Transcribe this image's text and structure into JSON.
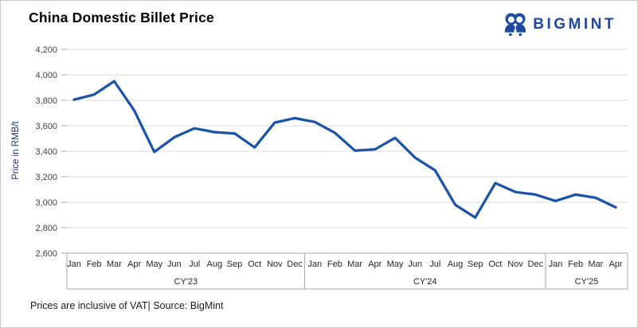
{
  "header": {
    "title": "China Domestic Billet Price",
    "brand": "BIGMINT"
  },
  "footer": {
    "note": "Prices are inclusive of VAT| Source: BigMint"
  },
  "colors": {
    "line": "#1A53A8",
    "brand": "#1B4A9E",
    "gridline": "#DCDCDC",
    "axis_box": "#ABABAB",
    "tick_text": "#404040",
    "category_text": "#262626"
  },
  "chart_data": {
    "type": "line",
    "title": "China Domestic Billet Price",
    "ylabel": "Price in RMB/t",
    "xlabel": "",
    "ylim": [
      2600,
      4200
    ],
    "ytick_interval": 200,
    "ytick_labels": [
      "2,600",
      "2,800",
      "3,000",
      "3,200",
      "3,400",
      "3,600",
      "3,800",
      "4,000",
      "4,200"
    ],
    "grid": true,
    "legend": "none",
    "groups": [
      {
        "label": "CY'23",
        "months": [
          "Jan",
          "Feb",
          "Mar",
          "Apr",
          "May",
          "Jun",
          "Jul",
          "Aug",
          "Sep",
          "Oct",
          "Nov",
          "Dec"
        ]
      },
      {
        "label": "CY'24",
        "months": [
          "Jan",
          "Feb",
          "Mar",
          "Apr",
          "May",
          "Jun",
          "Jul",
          "Aug",
          "Sep",
          "Oct",
          "Nov",
          "Dec"
        ]
      },
      {
        "label": "CY'25",
        "months": [
          "Jan",
          "Feb",
          "Mar",
          "Apr"
        ]
      }
    ],
    "values": [
      3805,
      3845,
      3950,
      3720,
      3395,
      3510,
      3580,
      3550,
      3540,
      3430,
      3625,
      3660,
      3630,
      3545,
      3405,
      3415,
      3505,
      3350,
      3250,
      2980,
      2880,
      3150,
      3080,
      3060,
      3010,
      3060,
      3035,
      2960
    ]
  }
}
